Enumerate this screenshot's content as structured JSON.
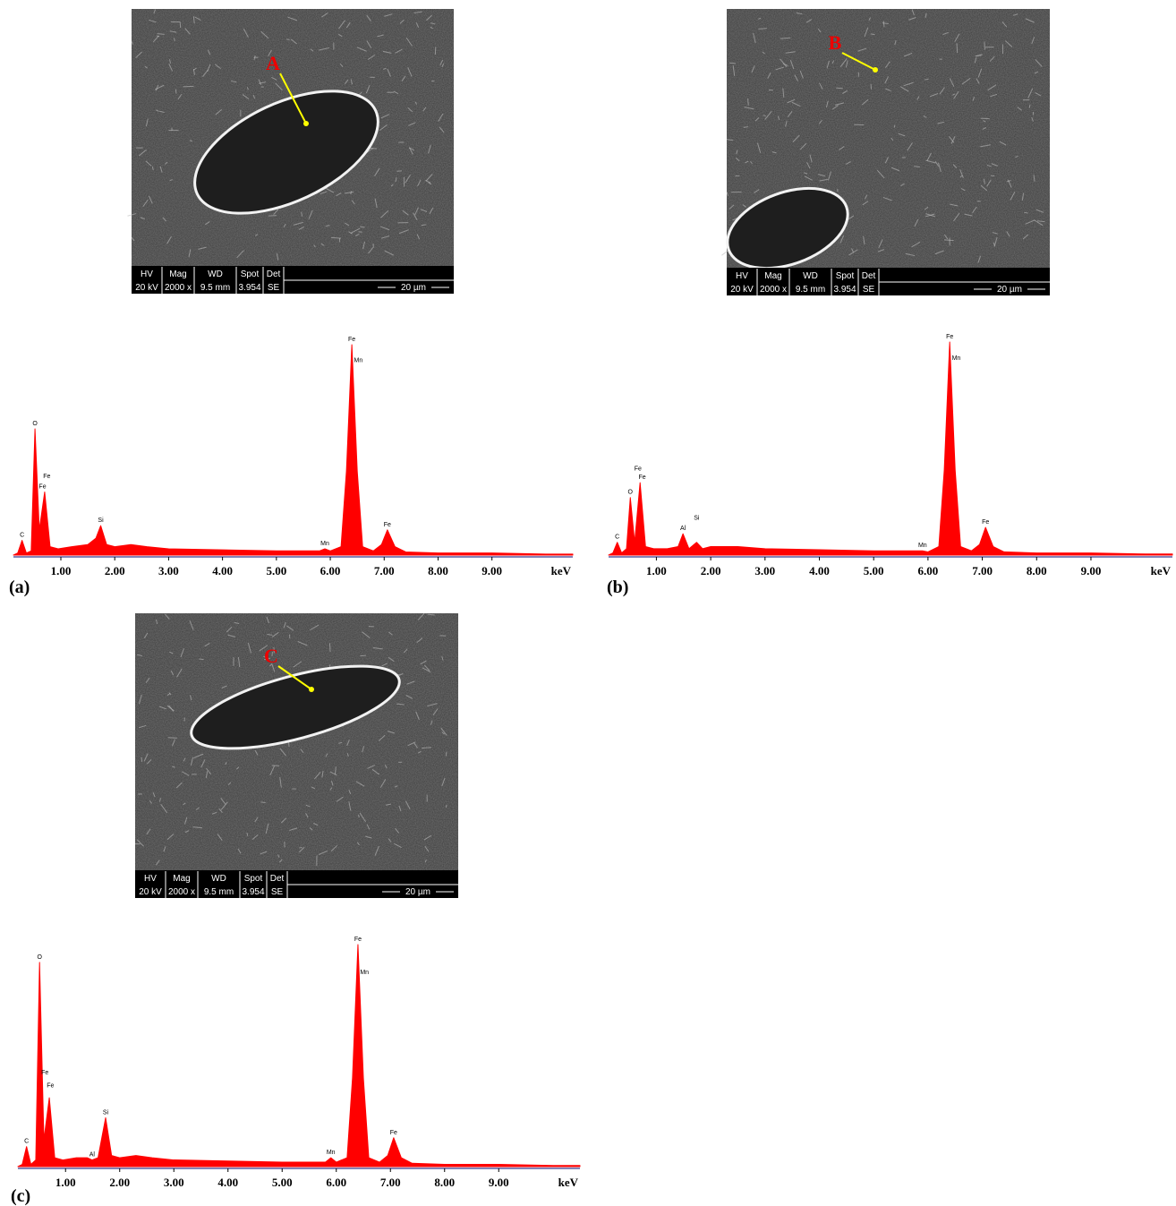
{
  "images": [
    {
      "marker": "A",
      "info_headers": [
        "HV",
        "Mag",
        "WD",
        "Spot",
        "Det"
      ],
      "info_values": [
        "20 kV",
        "2000 x",
        "9.5 mm",
        "3.954",
        "SE"
      ],
      "scale": "20 µm"
    },
    {
      "marker": "B",
      "info_headers": [
        "HV",
        "Mag",
        "WD",
        "Spot",
        "Det"
      ],
      "info_values": [
        "20 kV",
        "2000 x",
        "9.5 mm",
        "3.954",
        "SE"
      ],
      "scale": "20 µm"
    },
    {
      "marker": "C",
      "info_headers": [
        "HV",
        "Mag",
        "WD",
        "Spot",
        "Det"
      ],
      "info_values": [
        "20 kV",
        "2000 x",
        "9.5 mm",
        "3.954",
        "SE"
      ],
      "scale": "20 µm"
    }
  ],
  "chart_data": [
    {
      "type": "area",
      "label": "(a)",
      "x_label": "keV",
      "color": "#ff0000",
      "x": [
        0.12,
        0.2,
        0.28,
        0.36,
        0.45,
        0.52,
        0.6,
        0.7,
        0.8,
        0.95,
        1.2,
        1.5,
        1.65,
        1.74,
        1.85,
        2.0,
        2.3,
        2.6,
        3.0,
        4.0,
        5.0,
        5.8,
        5.9,
        6.0,
        6.2,
        6.3,
        6.4,
        6.5,
        6.6,
        6.8,
        6.95,
        7.06,
        7.2,
        7.4,
        8.0,
        9.0,
        10.0,
        10.5
      ],
      "values": [
        0,
        1,
        7,
        1,
        2,
        60,
        12,
        30,
        4,
        3,
        4,
        5,
        8,
        14,
        5,
        4,
        5,
        4,
        3,
        2.5,
        2,
        2,
        3,
        2,
        4,
        40,
        100,
        40,
        4,
        2,
        5,
        12,
        4,
        1.5,
        1,
        1,
        0.5,
        0.5
      ],
      "xlim": [
        0.12,
        10.5
      ],
      "ylim": [
        0,
        100
      ],
      "xticks": [
        {
          "value": 1,
          "label": "1.00"
        },
        {
          "value": 2,
          "label": "2.00"
        },
        {
          "value": 3,
          "label": "3.00"
        },
        {
          "value": 4,
          "label": "4.00"
        },
        {
          "value": 5,
          "label": "5.00"
        },
        {
          "value": 6,
          "label": "6.00"
        },
        {
          "value": 7,
          "label": "7.00"
        },
        {
          "value": 8,
          "label": "8.00"
        },
        {
          "value": 9,
          "label": "9.00"
        }
      ],
      "annotations": [
        {
          "text": "C",
          "x": 0.28,
          "y": 7
        },
        {
          "text": "O",
          "x": 0.52,
          "y": 60
        },
        {
          "text": "Fe",
          "x": 0.74,
          "y": 35
        },
        {
          "text": "Fe",
          "x": 0.66,
          "y": 30
        },
        {
          "text": "Si",
          "x": 1.74,
          "y": 14
        },
        {
          "text": "Mn",
          "x": 5.9,
          "y": 3
        },
        {
          "text": "Fe",
          "x": 6.4,
          "y": 100
        },
        {
          "text": "Mn",
          "x": 6.52,
          "y": 90
        },
        {
          "text": "Fe",
          "x": 7.06,
          "y": 12
        }
      ]
    },
    {
      "type": "area",
      "label": "(b)",
      "x_label": "keV",
      "color": "#ff0000",
      "x": [
        0.12,
        0.2,
        0.28,
        0.36,
        0.45,
        0.52,
        0.6,
        0.7,
        0.8,
        0.95,
        1.2,
        1.4,
        1.49,
        1.6,
        1.74,
        1.85,
        2.0,
        2.5,
        3.0,
        4.0,
        5.0,
        5.8,
        5.9,
        6.0,
        6.2,
        6.3,
        6.4,
        6.5,
        6.6,
        6.8,
        6.95,
        7.06,
        7.2,
        7.4,
        8.0,
        9.0,
        10.0,
        10.5
      ],
      "values": [
        0,
        1,
        6,
        1,
        3,
        27,
        6,
        34,
        4,
        3,
        3,
        4,
        10,
        3,
        6,
        3,
        4,
        4,
        3,
        2.5,
        2,
        2,
        2,
        1.5,
        4,
        40,
        100,
        40,
        4,
        2,
        5,
        13,
        4,
        1.5,
        1,
        1,
        0.5,
        0.5
      ],
      "xlim": [
        0.12,
        10.5
      ],
      "ylim": [
        0,
        100
      ],
      "xticks": [
        {
          "value": 1,
          "label": "1.00"
        },
        {
          "value": 2,
          "label": "2.00"
        },
        {
          "value": 3,
          "label": "3.00"
        },
        {
          "value": 4,
          "label": "4.00"
        },
        {
          "value": 5,
          "label": "5.00"
        },
        {
          "value": 6,
          "label": "6.00"
        },
        {
          "value": 7,
          "label": "7.00"
        },
        {
          "value": 8,
          "label": "8.00"
        },
        {
          "value": 9,
          "label": "9.00"
        }
      ],
      "annotations": [
        {
          "text": "C",
          "x": 0.28,
          "y": 6
        },
        {
          "text": "O",
          "x": 0.52,
          "y": 27
        },
        {
          "text": "Fe",
          "x": 0.66,
          "y": 38
        },
        {
          "text": "Fe",
          "x": 0.74,
          "y": 34
        },
        {
          "text": "Al",
          "x": 1.49,
          "y": 10
        },
        {
          "text": "Si",
          "x": 1.74,
          "y": 15
        },
        {
          "text": "Mn",
          "x": 5.9,
          "y": 2
        },
        {
          "text": "Fe",
          "x": 6.4,
          "y": 100
        },
        {
          "text": "Mn",
          "x": 6.52,
          "y": 90
        },
        {
          "text": "Fe",
          "x": 7.06,
          "y": 13
        }
      ]
    },
    {
      "type": "area",
      "label": "(c)",
      "x_label": "keV",
      "color": "#ff0000",
      "x": [
        0.12,
        0.2,
        0.28,
        0.36,
        0.45,
        0.52,
        0.6,
        0.7,
        0.8,
        0.95,
        1.2,
        1.4,
        1.49,
        1.6,
        1.74,
        1.85,
        2.0,
        2.3,
        2.6,
        3.0,
        4.0,
        5.0,
        5.8,
        5.9,
        6.0,
        6.2,
        6.3,
        6.4,
        6.5,
        6.6,
        6.8,
        6.95,
        7.06,
        7.2,
        7.4,
        8.0,
        9.0,
        10.0,
        10.5
      ],
      "values": [
        0,
        1,
        9,
        1,
        3,
        92,
        12,
        31,
        4,
        3,
        4,
        4,
        3,
        4,
        22,
        5,
        4,
        5,
        4,
        3,
        2.5,
        2,
        2,
        4,
        2,
        4,
        40,
        100,
        40,
        4,
        2,
        5,
        13,
        4,
        1.5,
        1,
        1,
        0.5,
        0.5
      ],
      "xlim": [
        0.12,
        10.5
      ],
      "ylim": [
        0,
        100
      ],
      "xticks": [
        {
          "value": 1,
          "label": "1.00"
        },
        {
          "value": 2,
          "label": "2.00"
        },
        {
          "value": 3,
          "label": "3.00"
        },
        {
          "value": 4,
          "label": "4.00"
        },
        {
          "value": 5,
          "label": "5.00"
        },
        {
          "value": 6,
          "label": "6.00"
        },
        {
          "value": 7,
          "label": "7.00"
        },
        {
          "value": 8,
          "label": "8.00"
        },
        {
          "value": 9,
          "label": "9.00"
        }
      ],
      "annotations": [
        {
          "text": "C",
          "x": 0.28,
          "y": 9
        },
        {
          "text": "O",
          "x": 0.52,
          "y": 92
        },
        {
          "text": "Fe",
          "x": 0.62,
          "y": 40
        },
        {
          "text": "Fe",
          "x": 0.72,
          "y": 34
        },
        {
          "text": "Al",
          "x": 1.49,
          "y": 3
        },
        {
          "text": "Si",
          "x": 1.74,
          "y": 22
        },
        {
          "text": "Mn",
          "x": 5.9,
          "y": 4
        },
        {
          "text": "Fe",
          "x": 6.4,
          "y": 100
        },
        {
          "text": "Mn",
          "x": 6.52,
          "y": 85
        },
        {
          "text": "Fe",
          "x": 7.06,
          "y": 13
        }
      ]
    }
  ]
}
